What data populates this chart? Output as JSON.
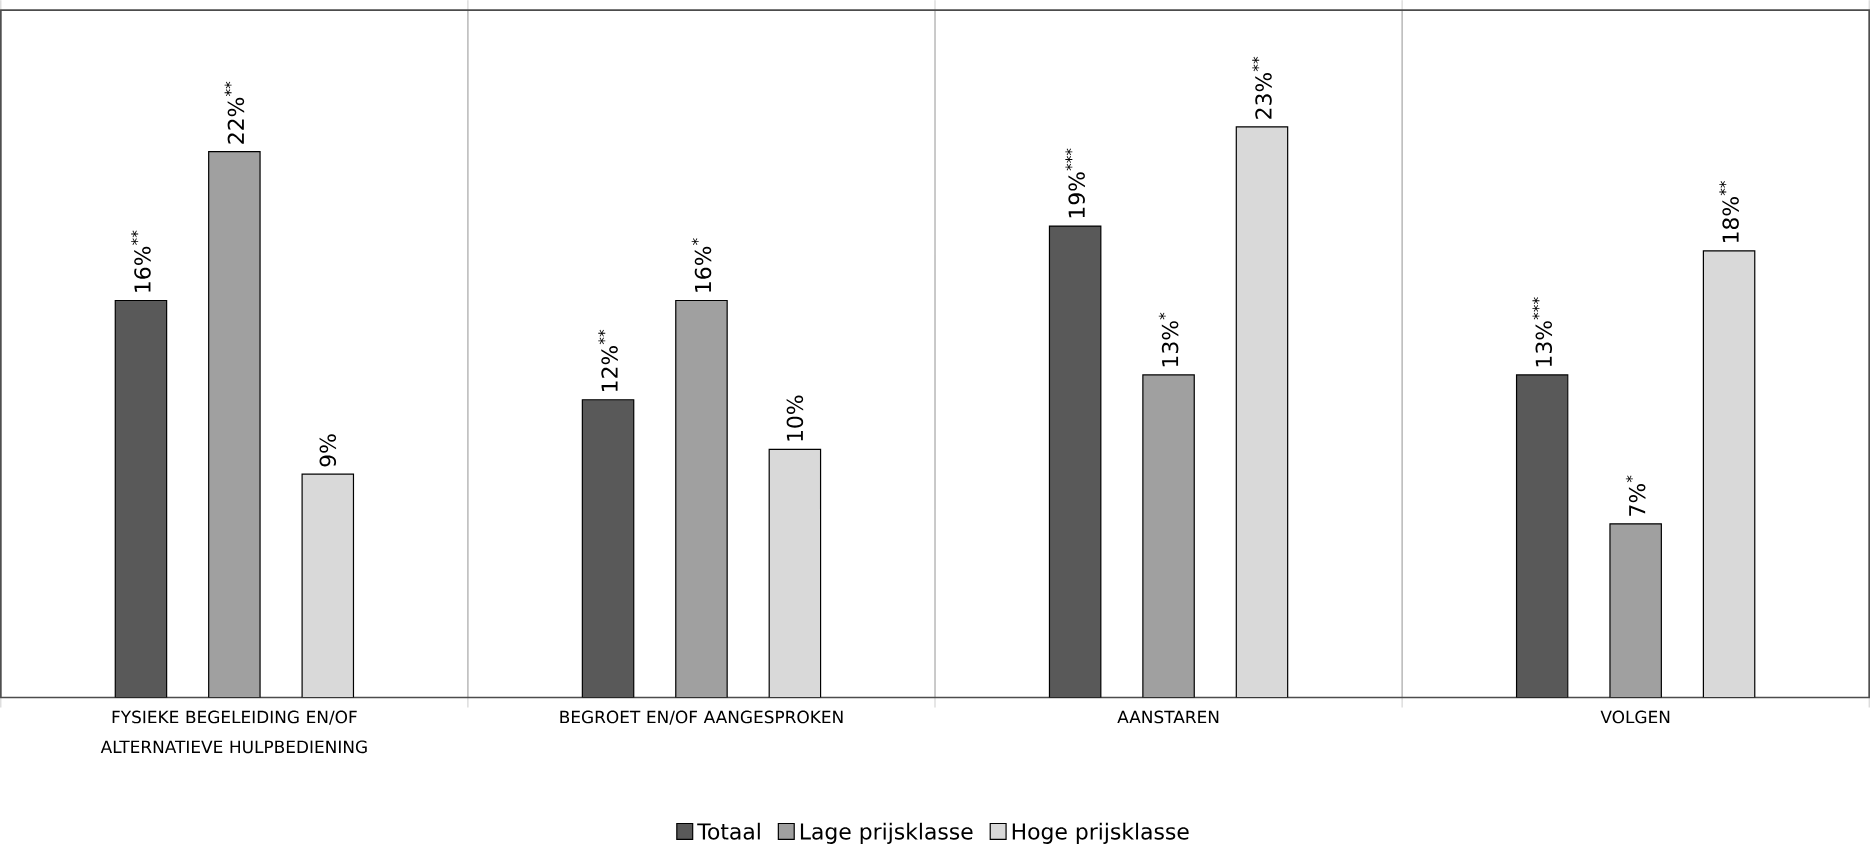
{
  "chart_data": {
    "type": "bar",
    "categories": [
      "FYSIEKE BEGELEIDING EN/OF ALTERNATIEVE HULPBEDIENING",
      "BEGROET EN/OF AANGESPROKEN",
      "AANSTAREN",
      "VOLGEN"
    ],
    "series": [
      {
        "name": "Totaal",
        "color": "#595959",
        "values": [
          16,
          12,
          19,
          13
        ],
        "value_labels": [
          "16%$^{**}$",
          "12%$^{**}$",
          "19%$^{***}$",
          "13%$^{***}$"
        ]
      },
      {
        "name": "Lage prijsklasse",
        "color": "#a0a0a0",
        "values": [
          22,
          16,
          13,
          7
        ],
        "value_labels": [
          "22%$^{**}$",
          "16%$^{*}$",
          "13%$^{*}$",
          "7%$^{*}$"
        ]
      },
      {
        "name": "Hoge prijsklasse",
        "color": "#d9d9d9",
        "values": [
          9,
          10,
          23,
          18
        ],
        "value_labels": [
          "9%",
          "10%",
          "23%$^{**}$",
          "18%$^{**}$"
        ]
      }
    ],
    "ylim": [
      0,
      27.7
    ],
    "tick_labels": "x",
    "legend": "bottom",
    "grid": "x"
  }
}
